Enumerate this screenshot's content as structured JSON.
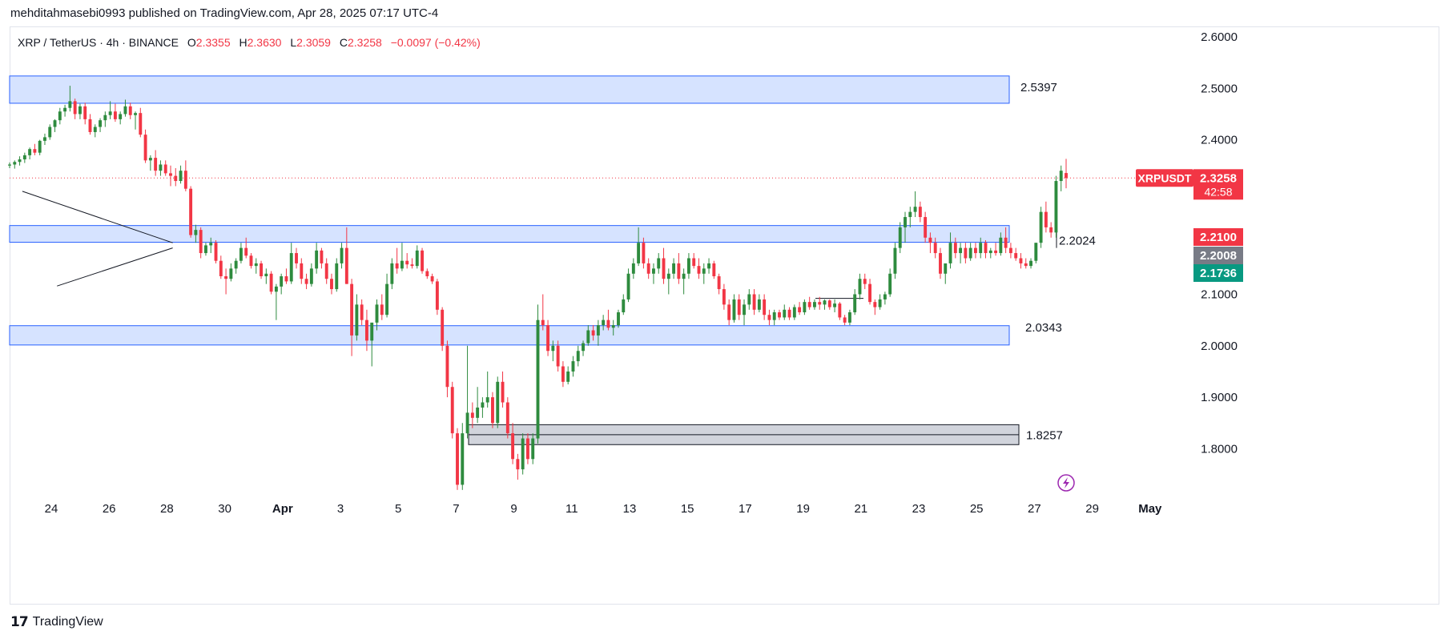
{
  "header": {
    "published": "mehditahmasebi0993 published on TradingView.com, Apr 28, 2025 07:17 UTC-4"
  },
  "footer": {
    "brand": "TradingView"
  },
  "colors": {
    "up": "#26a69a",
    "up_candle": "#2e8b3e",
    "down": "#f23645",
    "zone_fill": "#d6e3ff",
    "zone_stroke": "#2962ff",
    "gray_zone": "#d1d4dc"
  },
  "legend": {
    "symbol": "XRP / TetherUS · 4h · BINANCE",
    "o_label": "O",
    "o": "2.3355",
    "h_label": "H",
    "h": "2.3630",
    "l_label": "L",
    "l": "2.3059",
    "c_label": "C",
    "c": "2.3258",
    "change": "−0.0097 (−0.42%)"
  },
  "chart_data": {
    "type": "candlestick",
    "symbol": "XRPUSDT",
    "timeframe": "4h",
    "exchange": "BINANCE",
    "ylim": [
      1.72,
      2.62
    ],
    "y_ticks": [
      "2.6000",
      "2.5000",
      "2.4000",
      "2.1000",
      "2.0000",
      "1.9000",
      "1.8000"
    ],
    "x_ticks": [
      "24",
      "26",
      "28",
      "30",
      "Apr",
      "3",
      "5",
      "7",
      "9",
      "11",
      "13",
      "15",
      "17",
      "19",
      "21",
      "23",
      "25",
      "27",
      "29",
      "May"
    ],
    "last_price": {
      "label": "XRPUSDT",
      "value": "2.3258",
      "countdown": "42:58",
      "y": 2.3258
    },
    "price_badges": [
      {
        "value": "2.2100",
        "y": 2.21,
        "color": "#f23645"
      },
      {
        "value": "2.2008",
        "y": 2.2008,
        "color": "#787b86"
      },
      {
        "value": "2.1736",
        "y": 2.1736,
        "color": "#089981"
      }
    ],
    "zones": [
      {
        "y_top": 2.524,
        "y_bottom": 2.471,
        "label": "2.5397",
        "style": "blue"
      },
      {
        "y_top": 2.2335,
        "y_bottom": 2.201,
        "label": "2.2024",
        "style": "blue"
      },
      {
        "y_top": 2.039,
        "y_bottom": 2.0015,
        "label": "2.0343",
        "style": "blue"
      },
      {
        "y_top": 1.8467,
        "y_bottom": 1.808,
        "label": "1.8257",
        "style": "gray"
      }
    ],
    "triangle": {
      "upper": [
        [
          23.0,
          2.3
        ],
        [
          28.2,
          2.2
        ]
      ],
      "lower": [
        [
          24.2,
          2.116
        ],
        [
          28.2,
          2.19
        ]
      ]
    },
    "candles_ohlc": [
      [
        2.35,
        2.356,
        2.345,
        2.352
      ],
      [
        2.352,
        2.36,
        2.344,
        2.357
      ],
      [
        2.357,
        2.368,
        2.35,
        2.362
      ],
      [
        2.362,
        2.375,
        2.355,
        2.37
      ],
      [
        2.37,
        2.385,
        2.362,
        2.382
      ],
      [
        2.382,
        2.392,
        2.37,
        2.375
      ],
      [
        2.375,
        2.4,
        2.37,
        2.398
      ],
      [
        2.398,
        2.412,
        2.39,
        2.405
      ],
      [
        2.405,
        2.43,
        2.4,
        2.425
      ],
      [
        2.425,
        2.44,
        2.415,
        2.438
      ],
      [
        2.438,
        2.462,
        2.43,
        2.455
      ],
      [
        2.455,
        2.468,
        2.445,
        2.462
      ],
      [
        2.462,
        2.505,
        2.455,
        2.475
      ],
      [
        2.475,
        2.48,
        2.44,
        2.45
      ],
      [
        2.45,
        2.47,
        2.44,
        2.465
      ],
      [
        2.465,
        2.472,
        2.43,
        2.44
      ],
      [
        2.44,
        2.45,
        2.41,
        2.415
      ],
      [
        2.415,
        2.43,
        2.405,
        2.425
      ],
      [
        2.425,
        2.442,
        2.415,
        2.438
      ],
      [
        2.438,
        2.455,
        2.425,
        2.448
      ],
      [
        2.448,
        2.475,
        2.44,
        2.455
      ],
      [
        2.455,
        2.47,
        2.435,
        2.44
      ],
      [
        2.44,
        2.455,
        2.43,
        2.45
      ],
      [
        2.45,
        2.478,
        2.445,
        2.465
      ],
      [
        2.465,
        2.472,
        2.44,
        2.448
      ],
      [
        2.448,
        2.455,
        2.42,
        2.452
      ],
      [
        2.452,
        2.462,
        2.405,
        2.41
      ],
      [
        2.41,
        2.42,
        2.355,
        2.36
      ],
      [
        2.36,
        2.37,
        2.34,
        2.365
      ],
      [
        2.365,
        2.38,
        2.33,
        2.34
      ],
      [
        2.34,
        2.36,
        2.33,
        2.352
      ],
      [
        2.352,
        2.36,
        2.33,
        2.335
      ],
      [
        2.335,
        2.35,
        2.31,
        2.33
      ],
      [
        2.33,
        2.345,
        2.31,
        2.32
      ],
      [
        2.32,
        2.35,
        2.315,
        2.34
      ],
      [
        2.34,
        2.36,
        2.3,
        2.305
      ],
      [
        2.305,
        2.31,
        2.21,
        2.215
      ],
      [
        2.215,
        2.235,
        2.2,
        2.225
      ],
      [
        2.225,
        2.23,
        2.17,
        2.18
      ],
      [
        2.18,
        2.2,
        2.175,
        2.195
      ],
      [
        2.195,
        2.21,
        2.18,
        2.2
      ],
      [
        2.2,
        2.205,
        2.16,
        2.165
      ],
      [
        2.165,
        2.175,
        2.13,
        2.135
      ],
      [
        2.135,
        2.15,
        2.1,
        2.13
      ],
      [
        2.13,
        2.16,
        2.125,
        2.15
      ],
      [
        2.15,
        2.17,
        2.14,
        2.165
      ],
      [
        2.165,
        2.2,
        2.16,
        2.19
      ],
      [
        2.19,
        2.21,
        2.17,
        2.175
      ],
      [
        2.175,
        2.18,
        2.15,
        2.155
      ],
      [
        2.155,
        2.17,
        2.14,
        2.16
      ],
      [
        2.16,
        2.165,
        2.13,
        2.135
      ],
      [
        2.135,
        2.15,
        2.12,
        2.14
      ],
      [
        2.14,
        2.145,
        2.1,
        2.105
      ],
      [
        2.105,
        2.12,
        2.05,
        2.115
      ],
      [
        2.115,
        2.14,
        2.1,
        2.135
      ],
      [
        2.135,
        2.15,
        2.12,
        2.125
      ],
      [
        2.125,
        2.2,
        2.12,
        2.18
      ],
      [
        2.18,
        2.19,
        2.15,
        2.16
      ],
      [
        2.16,
        2.17,
        2.12,
        2.13
      ],
      [
        2.13,
        2.14,
        2.11,
        2.12
      ],
      [
        2.12,
        2.16,
        2.115,
        2.15
      ],
      [
        2.15,
        2.2,
        2.14,
        2.185
      ],
      [
        2.185,
        2.19,
        2.15,
        2.16
      ],
      [
        2.16,
        2.17,
        2.12,
        2.13
      ],
      [
        2.13,
        2.14,
        2.1,
        2.11
      ],
      [
        2.11,
        2.17,
        2.105,
        2.16
      ],
      [
        2.16,
        2.2,
        2.15,
        2.19
      ],
      [
        2.19,
        2.23,
        2.12,
        2.12
      ],
      [
        2.12,
        2.13,
        1.98,
        2.02
      ],
      [
        2.02,
        2.1,
        2.01,
        2.08
      ],
      [
        2.08,
        2.09,
        2.04,
        2.05
      ],
      [
        2.05,
        2.07,
        1.99,
        2.01
      ],
      [
        2.01,
        2.03,
        1.96,
        2.045
      ],
      [
        2.045,
        2.09,
        2.03,
        2.08
      ],
      [
        2.08,
        2.1,
        2.05,
        2.06
      ],
      [
        2.06,
        2.14,
        2.055,
        2.12
      ],
      [
        2.12,
        2.17,
        2.11,
        2.16
      ],
      [
        2.16,
        2.19,
        2.14,
        2.15
      ],
      [
        2.15,
        2.2,
        2.145,
        2.165
      ],
      [
        2.165,
        2.18,
        2.15,
        2.158
      ],
      [
        2.158,
        2.17,
        2.15,
        2.155
      ],
      [
        2.155,
        2.195,
        2.15,
        2.185
      ],
      [
        2.185,
        2.19,
        2.14,
        2.145
      ],
      [
        2.145,
        2.15,
        2.13,
        2.135
      ],
      [
        2.135,
        2.14,
        2.12,
        2.125
      ],
      [
        2.125,
        2.13,
        2.06,
        2.07
      ],
      [
        2.07,
        2.075,
        1.99,
        2.0
      ],
      [
        2.0,
        2.01,
        1.9,
        1.92
      ],
      [
        1.92,
        1.93,
        1.82,
        1.83
      ],
      [
        1.83,
        1.84,
        1.72,
        1.73
      ],
      [
        1.73,
        1.85,
        1.72,
        1.83
      ],
      [
        1.83,
        2.0,
        1.82,
        1.87
      ],
      [
        1.87,
        1.89,
        1.84,
        1.86
      ],
      [
        1.86,
        1.92,
        1.85,
        1.88
      ],
      [
        1.88,
        1.9,
        1.86,
        1.89
      ],
      [
        1.89,
        1.95,
        1.88,
        1.9
      ],
      [
        1.9,
        1.91,
        1.84,
        1.85
      ],
      [
        1.85,
        1.94,
        1.84,
        1.93
      ],
      [
        1.93,
        1.95,
        1.88,
        1.89
      ],
      [
        1.89,
        1.9,
        1.82,
        1.83
      ],
      [
        1.83,
        1.85,
        1.77,
        1.78
      ],
      [
        1.78,
        1.79,
        1.74,
        1.76
      ],
      [
        1.76,
        1.83,
        1.75,
        1.82
      ],
      [
        1.82,
        1.83,
        1.77,
        1.78
      ],
      [
        1.78,
        1.83,
        1.77,
        1.82
      ],
      [
        1.82,
        2.08,
        1.81,
        2.05
      ],
      [
        2.05,
        2.1,
        2.03,
        2.04
      ],
      [
        2.04,
        2.05,
        1.98,
        1.99
      ],
      [
        1.99,
        2.01,
        1.97,
        2.0
      ],
      [
        2.0,
        2.01,
        1.95,
        1.96
      ],
      [
        1.96,
        1.97,
        1.92,
        1.93
      ],
      [
        1.93,
        1.96,
        1.925,
        1.95
      ],
      [
        1.95,
        1.98,
        1.94,
        1.97
      ],
      [
        1.97,
        2.0,
        1.96,
        1.99
      ],
      [
        1.99,
        2.01,
        1.98,
        2.005
      ],
      [
        2.005,
        2.04,
        2.0,
        2.03
      ],
      [
        2.03,
        2.04,
        2.01,
        2.02
      ],
      [
        2.02,
        2.05,
        2.0,
        2.04
      ],
      [
        2.04,
        2.06,
        2.03,
        2.05
      ],
      [
        2.05,
        2.07,
        2.03,
        2.035
      ],
      [
        2.035,
        2.05,
        2.02,
        2.04
      ],
      [
        2.04,
        2.07,
        2.035,
        2.065
      ],
      [
        2.065,
        2.1,
        2.06,
        2.09
      ],
      [
        2.09,
        2.15,
        2.085,
        2.14
      ],
      [
        2.14,
        2.17,
        2.13,
        2.16
      ],
      [
        2.16,
        2.23,
        2.155,
        2.2
      ],
      [
        2.2,
        2.21,
        2.15,
        2.16
      ],
      [
        2.16,
        2.17,
        2.13,
        2.14
      ],
      [
        2.14,
        2.16,
        2.12,
        2.15
      ],
      [
        2.15,
        2.18,
        2.14,
        2.17
      ],
      [
        2.17,
        2.19,
        2.12,
        2.13
      ],
      [
        2.13,
        2.15,
        2.1,
        2.14
      ],
      [
        2.14,
        2.17,
        2.13,
        2.16
      ],
      [
        2.16,
        2.18,
        2.12,
        2.13
      ],
      [
        2.13,
        2.15,
        2.1,
        2.14
      ],
      [
        2.14,
        2.18,
        2.13,
        2.17
      ],
      [
        2.17,
        2.18,
        2.15,
        2.155
      ],
      [
        2.155,
        2.17,
        2.13,
        2.14
      ],
      [
        2.14,
        2.16,
        2.12,
        2.15
      ],
      [
        2.15,
        2.17,
        2.14,
        2.16
      ],
      [
        2.16,
        2.165,
        2.13,
        2.135
      ],
      [
        2.135,
        2.14,
        2.1,
        2.11
      ],
      [
        2.11,
        2.12,
        2.07,
        2.08
      ],
      [
        2.08,
        2.09,
        2.04,
        2.05
      ],
      [
        2.05,
        2.1,
        2.045,
        2.09
      ],
      [
        2.09,
        2.1,
        2.05,
        2.06
      ],
      [
        2.06,
        2.09,
        2.04,
        2.08
      ],
      [
        2.08,
        2.11,
        2.07,
        2.1
      ],
      [
        2.1,
        2.11,
        2.06,
        2.07
      ],
      [
        2.07,
        2.1,
        2.065,
        2.09
      ],
      [
        2.09,
        2.1,
        2.05,
        2.06
      ],
      [
        2.06,
        2.07,
        2.04,
        2.05
      ],
      [
        2.05,
        2.07,
        2.04,
        2.065
      ],
      [
        2.065,
        2.07,
        2.05,
        2.055
      ],
      [
        2.055,
        2.08,
        2.05,
        2.07
      ],
      [
        2.07,
        2.075,
        2.05,
        2.055
      ],
      [
        2.055,
        2.08,
        2.05,
        2.075
      ],
      [
        2.075,
        2.085,
        2.06,
        2.065
      ],
      [
        2.065,
        2.09,
        2.06,
        2.085
      ],
      [
        2.085,
        2.095,
        2.07,
        2.075
      ],
      [
        2.075,
        2.09,
        2.07,
        2.085
      ],
      [
        2.085,
        2.095,
        2.07,
        2.08
      ],
      [
        2.08,
        2.09,
        2.07,
        2.088
      ],
      [
        2.088,
        2.09,
        2.07,
        2.075
      ],
      [
        2.075,
        2.09,
        2.065,
        2.082
      ],
      [
        2.082,
        2.085,
        2.05,
        2.055
      ],
      [
        2.055,
        2.06,
        2.04,
        2.045
      ],
      [
        2.045,
        2.07,
        2.04,
        2.065
      ],
      [
        2.065,
        2.11,
        2.06,
        2.1
      ],
      [
        2.1,
        2.14,
        2.09,
        2.13
      ],
      [
        2.13,
        2.14,
        2.11,
        2.12
      ],
      [
        2.12,
        2.13,
        2.08,
        2.085
      ],
      [
        2.085,
        2.09,
        2.06,
        2.075
      ],
      [
        2.075,
        2.1,
        2.07,
        2.09
      ],
      [
        2.09,
        2.105,
        2.08,
        2.1
      ],
      [
        2.1,
        2.15,
        2.095,
        2.14
      ],
      [
        2.14,
        2.2,
        2.13,
        2.19
      ],
      [
        2.19,
        2.24,
        2.18,
        2.23
      ],
      [
        2.23,
        2.26,
        2.2,
        2.25
      ],
      [
        2.25,
        2.27,
        2.23,
        2.26
      ],
      [
        2.26,
        2.3,
        2.25,
        2.27
      ],
      [
        2.27,
        2.28,
        2.24,
        2.25
      ],
      [
        2.25,
        2.26,
        2.2,
        2.21
      ],
      [
        2.21,
        2.22,
        2.18,
        2.2
      ],
      [
        2.2,
        2.21,
        2.17,
        2.18
      ],
      [
        2.18,
        2.19,
        2.13,
        2.14
      ],
      [
        2.14,
        2.15,
        2.12,
        2.16
      ],
      [
        2.16,
        2.22,
        2.15,
        2.2
      ],
      [
        2.2,
        2.21,
        2.17,
        2.18
      ],
      [
        2.18,
        2.2,
        2.16,
        2.19
      ],
      [
        2.19,
        2.2,
        2.16,
        2.17
      ],
      [
        2.17,
        2.2,
        2.165,
        2.19
      ],
      [
        2.19,
        2.2,
        2.17,
        2.18
      ],
      [
        2.18,
        2.21,
        2.17,
        2.2
      ],
      [
        2.2,
        2.205,
        2.17,
        2.18
      ],
      [
        2.18,
        2.19,
        2.17,
        2.185
      ],
      [
        2.185,
        2.2,
        2.175,
        2.18
      ],
      [
        2.18,
        2.22,
        2.175,
        2.21
      ],
      [
        2.21,
        2.23,
        2.18,
        2.19
      ],
      [
        2.19,
        2.2,
        2.17,
        2.18
      ],
      [
        2.18,
        2.19,
        2.165,
        2.17
      ],
      [
        2.17,
        2.18,
        2.15,
        2.16
      ],
      [
        2.16,
        2.17,
        2.15,
        2.155
      ],
      [
        2.155,
        2.17,
        2.15,
        2.165
      ],
      [
        2.165,
        2.2,
        2.16,
        2.2
      ],
      [
        2.2,
        2.27,
        2.19,
        2.26
      ],
      [
        2.26,
        2.28,
        2.22,
        2.23
      ],
      [
        2.23,
        2.24,
        2.21,
        2.22
      ],
      [
        2.22,
        2.33,
        2.21,
        2.32
      ],
      [
        2.32,
        2.35,
        2.3,
        2.34
      ],
      [
        2.3355,
        2.363,
        2.3059,
        2.3258
      ]
    ]
  }
}
